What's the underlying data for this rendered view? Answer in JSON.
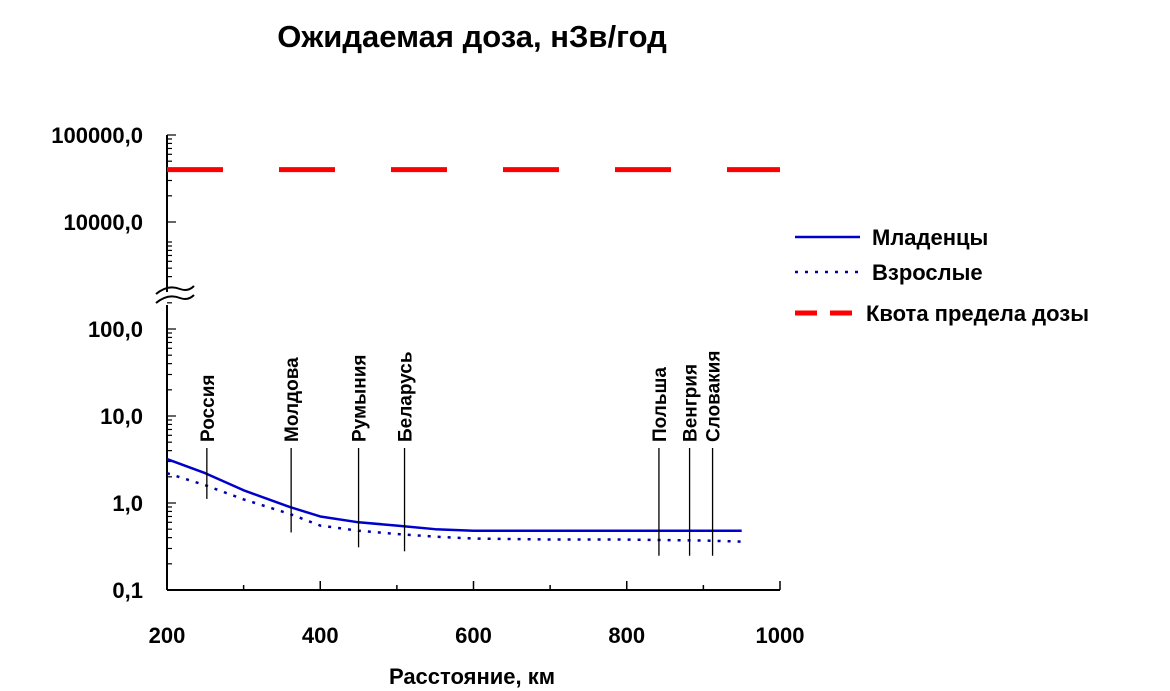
{
  "chart_data": {
    "type": "line",
    "title": "Ожидаемая доза, нЗв/год",
    "xlabel": "Расстояние, км",
    "ylabel": "",
    "xlim": [
      200,
      1000
    ],
    "x_ticks": [
      200,
      400,
      600,
      800,
      1000
    ],
    "x_tick_labels": [
      "200",
      "400",
      "600",
      "800",
      "1000"
    ],
    "yscale": "log",
    "y_axis_break": true,
    "y_ticks": [
      0.1,
      1,
      10,
      100,
      10000,
      100000
    ],
    "y_tick_labels": [
      "0,1",
      "1,0",
      "10,0",
      "100,0",
      "10000,0",
      "100000,0"
    ],
    "grid": false,
    "legend_position": "right",
    "series": [
      {
        "name": "Младенцы",
        "style": "solid",
        "color": "#0000cc",
        "x": [
          200,
          250,
          300,
          360,
          400,
          450,
          500,
          550,
          600,
          700,
          800,
          900,
          950
        ],
        "y": [
          3.2,
          2.2,
          1.4,
          0.9,
          0.7,
          0.6,
          0.55,
          0.5,
          0.48,
          0.48,
          0.48,
          0.48,
          0.48
        ]
      },
      {
        "name": "Взрослые",
        "style": "dotted",
        "color": "#0000aa",
        "x": [
          200,
          250,
          300,
          360,
          400,
          450,
          500,
          550,
          600,
          700,
          800,
          900,
          950
        ],
        "y": [
          2.2,
          1.6,
          1.1,
          0.75,
          0.55,
          0.48,
          0.44,
          0.41,
          0.39,
          0.38,
          0.38,
          0.37,
          0.36
        ]
      },
      {
        "name": "Квота предела дозы",
        "style": "dashed",
        "color": "#ff0000",
        "x": [
          200,
          1000
        ],
        "y": [
          40000,
          40000
        ]
      }
    ],
    "annotations": [
      {
        "label": "Россия",
        "x": 252
      },
      {
        "label": "Молдова",
        "x": 362
      },
      {
        "label": "Румыния",
        "x": 450
      },
      {
        "label": "Беларусь",
        "x": 510
      },
      {
        "label": "Польша",
        "x": 842
      },
      {
        "label": "Венгрия",
        "x": 882
      },
      {
        "label": "Словакия",
        "x": 912
      }
    ]
  }
}
